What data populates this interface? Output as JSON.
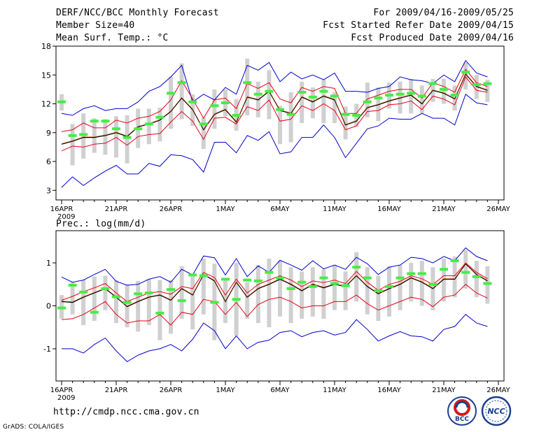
{
  "header": {
    "left": [
      "DERF/NCC/BCC Monthly Forecast",
      "Member Size=40",
      "Mean Surf. Temp.: °C"
    ],
    "right": [
      "For 2009/04/16-2009/05/25",
      "Fcst Started Refer Date 2009/04/15",
      "Fcst Produced Date 2009/04/16"
    ]
  },
  "footer": {
    "url": "http://cmdp.ncc.cma.gov.cn",
    "credit": "GrADS: COLA/IGES",
    "logo1_text": "BCC",
    "logo2_text": "NCC"
  },
  "colors": {
    "max_min": "#0000cc",
    "pct": "#e8001c",
    "mean": "#000000",
    "obs": "#44ee44",
    "box": "#d0d0d0",
    "obs_line": "#ff6600"
  },
  "chart_data": [
    {
      "type": "line",
      "title": "Mean Surf. Temp.: °C",
      "ylim": [
        2,
        18
      ],
      "yticks": [
        3,
        6,
        9,
        12,
        15,
        18
      ],
      "xtick_labels": [
        "16APR",
        "21APR",
        "26APR",
        "1MAY",
        "6MAY",
        "11MAY",
        "16MAY",
        "21MAY",
        "26MAY"
      ],
      "xtick_days": [
        0,
        5,
        10,
        15,
        20,
        25,
        30,
        35,
        40
      ],
      "year_label": "2009",
      "days": 40,
      "series": [
        {
          "name": "max",
          "values": [
            11.0,
            10.8,
            11.5,
            11.8,
            11.3,
            11.5,
            11.5,
            12.2,
            13.3,
            13.8,
            14.8,
            16.0,
            12.2,
            13.0,
            12.4,
            13.7,
            13.0,
            16.0,
            15.5,
            16.3,
            14.3,
            15.3,
            14.6,
            15.0,
            14.5,
            15.2,
            13.3,
            13.3,
            13.2,
            13.6,
            13.8,
            14.8,
            14.5,
            14.4,
            14.1,
            15.0,
            14.3,
            16.5,
            15.2,
            14.8
          ]
        },
        {
          "name": "p90",
          "values": [
            9.1,
            9.3,
            10.0,
            9.5,
            9.5,
            10.3,
            10.0,
            10.5,
            10.7,
            11.2,
            12.4,
            14.4,
            12.5,
            10.5,
            12.4,
            12.6,
            11.5,
            14.1,
            13.6,
            14.2,
            12.5,
            12.1,
            13.7,
            13.3,
            13.8,
            13.6,
            11.0,
            11.0,
            12.5,
            12.9,
            13.3,
            13.5,
            13.5,
            12.6,
            14.2,
            13.8,
            13.2,
            15.6,
            14.2,
            13.8
          ]
        },
        {
          "name": "mean",
          "values": [
            7.8,
            8.1,
            8.5,
            8.5,
            8.7,
            9.0,
            8.6,
            9.6,
            9.9,
            10.3,
            11.2,
            12.6,
            11.4,
            9.3,
            10.9,
            11.4,
            10.1,
            12.7,
            12.4,
            13.3,
            11.3,
            11.0,
            12.7,
            12.2,
            12.8,
            12.4,
            9.8,
            10.2,
            11.6,
            11.9,
            12.3,
            12.6,
            12.9,
            12.0,
            13.4,
            13.1,
            12.5,
            15.1,
            13.8,
            13.4
          ]
        },
        {
          "name": "p10",
          "values": [
            7.1,
            7.6,
            7.5,
            7.8,
            7.9,
            8.5,
            7.7,
            8.6,
            8.8,
            8.9,
            10.1,
            11.2,
            10.2,
            8.3,
            10.5,
            10.6,
            9.9,
            11.7,
            11.3,
            12.4,
            10.2,
            10.4,
            11.8,
            11.3,
            12.0,
            11.3,
            9.3,
            9.7,
            11.2,
            11.3,
            11.9,
            12.0,
            12.3,
            11.4,
            12.8,
            12.5,
            11.9,
            14.8,
            13.4,
            13.2
          ]
        },
        {
          "name": "min",
          "values": [
            3.3,
            4.4,
            3.5,
            4.3,
            5.0,
            5.6,
            4.7,
            4.7,
            5.8,
            5.5,
            6.7,
            6.6,
            6.2,
            4.9,
            8.0,
            8.0,
            6.9,
            8.7,
            8.2,
            9.1,
            6.8,
            7.0,
            8.5,
            8.5,
            9.8,
            8.5,
            6.4,
            7.9,
            9.4,
            9.7,
            10.5,
            10.4,
            10.4,
            11.0,
            10.5,
            10.5,
            9.8,
            13.0,
            12.1,
            11.9
          ]
        },
        {
          "name": "observed",
          "values": [
            12.2,
            8.7,
            8.8,
            10.2,
            10.2,
            9.4,
            8.5,
            9.4,
            9.9,
            10.6,
            13.1,
            14.2,
            12.2,
            9.9,
            11.8,
            12.1,
            10.8,
            14.2,
            13.0,
            13.3,
            11.4,
            10.9,
            13.2,
            12.7,
            13.3,
            12.8,
            10.9,
            10.8,
            12.2,
            12.6,
            12.9,
            13.0,
            13.1,
            12.8,
            14.1,
            13.5,
            12.9,
            15.3,
            14.0,
            14.1
          ]
        },
        {
          "name": "box_top",
          "values": [
            13.0,
            9.9,
            11.0,
            10.5,
            10.4,
            10.7,
            10.8,
            11.5,
            11.5,
            11.6,
            14.8,
            16.2,
            13.0,
            10.6,
            13.5,
            13.5,
            12.5,
            16.7,
            14.3,
            15.5,
            11.8,
            13.2,
            14.3,
            13.7,
            14.5,
            13.2,
            11.7,
            12.0,
            14.2,
            13.7,
            14.2,
            14.3,
            14.6,
            13.9,
            14.6,
            14.6,
            13.9,
            16.3,
            15.0,
            14.5
          ]
        },
        {
          "name": "box_bottom",
          "values": [
            11.3,
            5.6,
            6.3,
            6.9,
            6.7,
            6.4,
            5.8,
            7.4,
            7.8,
            8.1,
            9.4,
            10.4,
            9.7,
            7.3,
            9.4,
            10.7,
            9.2,
            10.8,
            10.6,
            10.4,
            7.8,
            8.0,
            10.0,
            10.5,
            10.0,
            10.0,
            8.3,
            9.6,
            10.6,
            10.2,
            11.5,
            11.0,
            11.0,
            11.0,
            12.2,
            12.0,
            11.3,
            13.5,
            12.5,
            12.2
          ]
        }
      ]
    },
    {
      "type": "line",
      "title": "Prec.: log(mm/d)",
      "ylim": [
        -1.75,
        1.75
      ],
      "yticks": [
        -1,
        0,
        1
      ],
      "xtick_labels": [
        "16APR",
        "21APR",
        "26APR",
        "1MAY",
        "6MAY",
        "11MAY",
        "16MAY",
        "21MAY",
        "26MAY"
      ],
      "xtick_days": [
        0,
        5,
        10,
        15,
        20,
        25,
        30,
        35,
        40
      ],
      "year_label": "2009",
      "days": 40,
      "series": [
        {
          "name": "max",
          "values": [
            0.67,
            0.55,
            0.6,
            0.73,
            0.85,
            0.57,
            0.48,
            0.5,
            0.62,
            0.68,
            0.55,
            0.85,
            0.72,
            1.16,
            1.12,
            0.72,
            1.1,
            0.68,
            0.93,
            0.78,
            1.06,
            0.95,
            0.83,
            1.05,
            0.86,
            0.95,
            0.85,
            1.13,
            0.98,
            0.73,
            0.9,
            0.95,
            1.13,
            1.1,
            1.0,
            1.15,
            1.05,
            1.35,
            1.15,
            1.05
          ]
        },
        {
          "name": "p90",
          "values": [
            0.13,
            0.22,
            0.33,
            0.42,
            0.52,
            0.3,
            0.1,
            0.2,
            0.3,
            0.33,
            0.27,
            0.45,
            0.4,
            0.78,
            0.66,
            0.25,
            0.62,
            0.3,
            0.5,
            0.6,
            0.7,
            0.6,
            0.45,
            0.58,
            0.54,
            0.6,
            0.52,
            0.8,
            0.55,
            0.36,
            0.5,
            0.57,
            0.7,
            0.63,
            0.5,
            0.7,
            0.7,
            1.0,
            0.78,
            0.63
          ]
        },
        {
          "name": "mean",
          "values": [
            0.1,
            0.08,
            0.2,
            0.3,
            0.4,
            0.2,
            -0.02,
            0.1,
            0.2,
            0.25,
            0.13,
            0.4,
            0.25,
            0.73,
            0.58,
            0.1,
            0.55,
            0.2,
            0.4,
            0.5,
            0.62,
            0.5,
            0.35,
            0.5,
            0.42,
            0.5,
            0.45,
            0.7,
            0.45,
            0.28,
            0.4,
            0.5,
            0.65,
            0.55,
            0.4,
            0.62,
            0.62,
            0.98,
            0.73,
            0.58
          ]
        },
        {
          "name": "p10",
          "values": [
            -0.32,
            -0.3,
            -0.2,
            -0.05,
            0.1,
            -0.2,
            -0.4,
            -0.35,
            -0.35,
            -0.2,
            -0.45,
            -0.15,
            -0.2,
            0.15,
            0.1,
            -0.2,
            0.08,
            -0.25,
            0.03,
            0.15,
            0.2,
            0.1,
            -0.05,
            0.0,
            0.0,
            0.1,
            0.1,
            0.25,
            0.05,
            -0.1,
            0.0,
            0.1,
            0.2,
            0.15,
            -0.02,
            0.2,
            0.25,
            0.5,
            0.3,
            0.18
          ]
        },
        {
          "name": "min",
          "values": [
            -1.0,
            -1.0,
            -1.1,
            -0.9,
            -0.75,
            -1.05,
            -1.3,
            -1.15,
            -1.05,
            -1.0,
            -0.9,
            -1.05,
            -0.78,
            -0.4,
            -0.58,
            -1.0,
            -0.7,
            -1.0,
            -0.85,
            -0.8,
            -0.62,
            -0.58,
            -0.72,
            -0.62,
            -0.58,
            -0.68,
            -0.62,
            -0.32,
            -0.55,
            -0.82,
            -0.7,
            -0.6,
            -0.7,
            -0.72,
            -0.82,
            -0.55,
            -0.48,
            -0.2,
            -0.4,
            -0.48
          ]
        },
        {
          "name": "observed",
          "values": [
            -0.05,
            0.48,
            0.32,
            -0.15,
            0.4,
            0.21,
            0.08,
            0.28,
            0.3,
            -0.17,
            0.38,
            0.12,
            0.72,
            0.7,
            0.08,
            0.62,
            0.15,
            0.6,
            0.58,
            0.78,
            0.65,
            0.4,
            0.55,
            0.45,
            0.65,
            0.52,
            0.47,
            0.9,
            0.65,
            0.35,
            0.45,
            0.65,
            0.75,
            0.75,
            0.5,
            0.85,
            1.05,
            0.78,
            0.68,
            0.52
          ]
        },
        {
          "name": "box_top",
          "values": [
            0.25,
            0.55,
            0.6,
            0.68,
            0.7,
            0.6,
            0.5,
            0.58,
            0.62,
            0.6,
            0.6,
            0.92,
            0.7,
            1.1,
            0.98,
            0.6,
            1.0,
            0.55,
            0.95,
            1.1,
            1.05,
            0.9,
            0.8,
            0.9,
            0.85,
            0.95,
            0.8,
            1.25,
            0.9,
            0.7,
            0.92,
            0.95,
            1.0,
            1.05,
            0.9,
            1.1,
            1.15,
            1.3,
            1.05,
            0.92
          ]
        },
        {
          "name": "box_bottom",
          "values": [
            -0.3,
            -0.2,
            -0.45,
            -0.35,
            -0.1,
            -0.4,
            -0.5,
            -0.6,
            -0.45,
            -0.8,
            -0.65,
            -0.3,
            -0.55,
            -0.2,
            -0.8,
            -0.4,
            -0.7,
            -0.3,
            -0.4,
            -0.5,
            -0.25,
            -0.4,
            -0.3,
            -0.25,
            -0.3,
            -0.1,
            -0.1,
            0.1,
            -0.2,
            -0.35,
            -0.25,
            -0.1,
            0.1,
            0.0,
            -0.1,
            0.1,
            0.2,
            0.4,
            0.2,
            0.05
          ]
        }
      ]
    }
  ]
}
